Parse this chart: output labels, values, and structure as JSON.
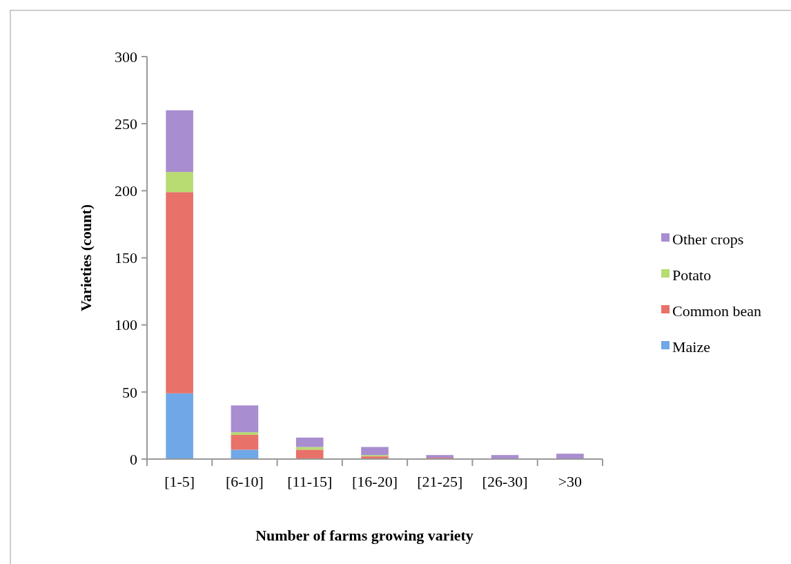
{
  "chart_data": {
    "type": "bar",
    "stacked": true,
    "xlabel": "Number of farms growing variety",
    "ylabel": "Varieties (count)",
    "categories": [
      "[1-5]",
      "[6-10]",
      "[11-15]",
      "[16-20]",
      "[21-25]",
      "[26-30]",
      ">30"
    ],
    "series": [
      {
        "name": "Maize",
        "color": "#70a7e6",
        "values": [
          49,
          7,
          0,
          0,
          0,
          0,
          0
        ]
      },
      {
        "name": "Common bean",
        "color": "#e8716a",
        "values": [
          150,
          11,
          7,
          2,
          1,
          0,
          0
        ]
      },
      {
        "name": "Potato",
        "color": "#b8db72",
        "values": [
          15,
          2,
          2,
          1,
          0,
          0,
          0
        ]
      },
      {
        "name": "Other crops",
        "color": "#a88dd0",
        "values": [
          46,
          20,
          7,
          6,
          2,
          3,
          4
        ]
      }
    ],
    "ylim": [
      0,
      300
    ],
    "yticks": [
      0,
      50,
      100,
      150,
      200,
      250,
      300
    ],
    "legend": "right"
  }
}
